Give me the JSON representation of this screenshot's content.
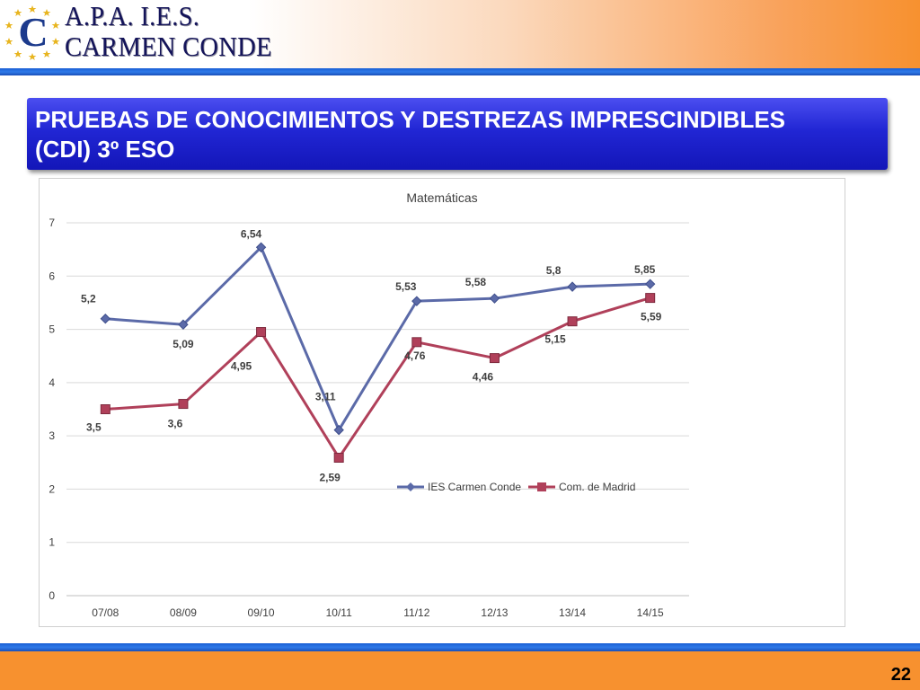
{
  "header": {
    "org_line1": "A.P.A.  I.E.S.",
    "org_line2": "CARMEN CONDE",
    "logo_letter": "C"
  },
  "slide": {
    "title_line1": "PRUEBAS DE CONOCIMIENTOS Y DESTREZAS IMPRESCINDIBLES",
    "title_line2": "(CDI) 3º ESO"
  },
  "footer": {
    "page_number": "22"
  },
  "colors": {
    "series1": "#5b6aa8",
    "series2": "#b0405a",
    "title_box": "#2126d4",
    "accent_orange": "#f7912f",
    "accent_blue": "#1a5fd4"
  },
  "chart_data": {
    "type": "line",
    "title": "Matemáticas",
    "xlabel": "",
    "ylabel": "",
    "categories": [
      "07/08",
      "08/09",
      "09/10",
      "10/11",
      "11/12",
      "12/13",
      "13/14",
      "14/15"
    ],
    "ylim": [
      0,
      7
    ],
    "yticks": [
      "0",
      "1",
      "2",
      "3",
      "4",
      "5",
      "6",
      "7"
    ],
    "grid": true,
    "legend_position": "inside-right",
    "series": [
      {
        "name": "IES Carmen Conde",
        "marker": "diamond",
        "color": "#5b6aa8",
        "values": [
          5.2,
          5.09,
          6.54,
          3.11,
          5.53,
          5.58,
          5.8,
          5.85
        ],
        "labels": [
          "5,2",
          "5,09",
          "6,54",
          "3,11",
          "5,53",
          "5,58",
          "5,8",
          "5,85"
        ]
      },
      {
        "name": "Com. de Madrid",
        "marker": "square",
        "color": "#b0405a",
        "values": [
          3.5,
          3.6,
          4.95,
          2.59,
          4.76,
          4.46,
          5.15,
          5.59
        ],
        "labels": [
          "3,5",
          "3,6",
          "4,95",
          "2,59",
          "4,76",
          "4,46",
          "5,15",
          "5,59"
        ]
      }
    ]
  }
}
